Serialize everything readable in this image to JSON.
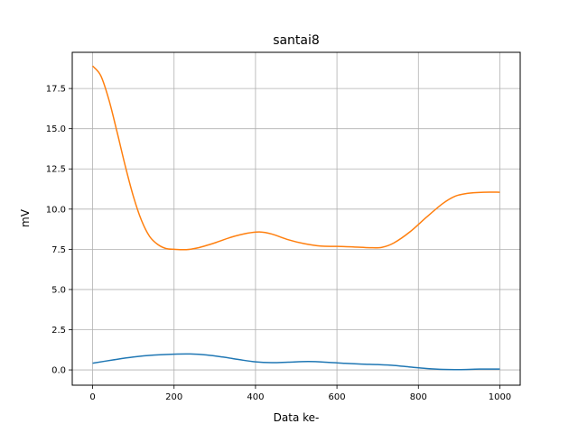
{
  "chart_data": {
    "type": "line",
    "title": "santai8",
    "xlabel": "Data ke-",
    "ylabel": "mV",
    "xlim": [
      -50,
      1050
    ],
    "ylim": [
      -0.95,
      19.75
    ],
    "xticks": [
      0,
      200,
      400,
      600,
      800,
      1000
    ],
    "yticks": [
      0.0,
      2.5,
      5.0,
      7.5,
      10.0,
      12.5,
      15.0,
      17.5
    ],
    "xtick_labels": [
      "0",
      "200",
      "400",
      "600",
      "800",
      "1000"
    ],
    "ytick_labels": [
      "0.0",
      "2.5",
      "5.0",
      "7.5",
      "10.0",
      "12.5",
      "15.0",
      "17.5"
    ],
    "grid": true,
    "series": [
      {
        "color": "#1f77b4",
        "points": [
          [
            0,
            0.42
          ],
          [
            50,
            0.62
          ],
          [
            100,
            0.8
          ],
          [
            150,
            0.92
          ],
          [
            200,
            0.98
          ],
          [
            240,
            0.99
          ],
          [
            280,
            0.93
          ],
          [
            320,
            0.8
          ],
          [
            360,
            0.64
          ],
          [
            400,
            0.5
          ],
          [
            440,
            0.45
          ],
          [
            480,
            0.48
          ],
          [
            530,
            0.52
          ],
          [
            580,
            0.47
          ],
          [
            620,
            0.41
          ],
          [
            660,
            0.36
          ],
          [
            700,
            0.33
          ],
          [
            740,
            0.28
          ],
          [
            780,
            0.18
          ],
          [
            820,
            0.09
          ],
          [
            860,
            0.03
          ],
          [
            900,
            0.02
          ],
          [
            950,
            0.05
          ],
          [
            1000,
            0.05
          ]
        ]
      },
      {
        "color": "#ff7f0e",
        "points": [
          [
            0,
            18.9
          ],
          [
            20,
            18.3
          ],
          [
            40,
            16.8
          ],
          [
            60,
            14.8
          ],
          [
            80,
            12.7
          ],
          [
            100,
            10.8
          ],
          [
            120,
            9.3
          ],
          [
            140,
            8.3
          ],
          [
            160,
            7.8
          ],
          [
            180,
            7.55
          ],
          [
            200,
            7.5
          ],
          [
            230,
            7.48
          ],
          [
            260,
            7.6
          ],
          [
            300,
            7.9
          ],
          [
            340,
            8.25
          ],
          [
            380,
            8.5
          ],
          [
            410,
            8.58
          ],
          [
            440,
            8.45
          ],
          [
            480,
            8.1
          ],
          [
            520,
            7.85
          ],
          [
            560,
            7.7
          ],
          [
            600,
            7.68
          ],
          [
            640,
            7.65
          ],
          [
            680,
            7.6
          ],
          [
            710,
            7.62
          ],
          [
            740,
            7.9
          ],
          [
            780,
            8.6
          ],
          [
            820,
            9.5
          ],
          [
            860,
            10.35
          ],
          [
            890,
            10.8
          ],
          [
            920,
            10.98
          ],
          [
            960,
            11.05
          ],
          [
            1000,
            11.05
          ]
        ]
      }
    ]
  }
}
